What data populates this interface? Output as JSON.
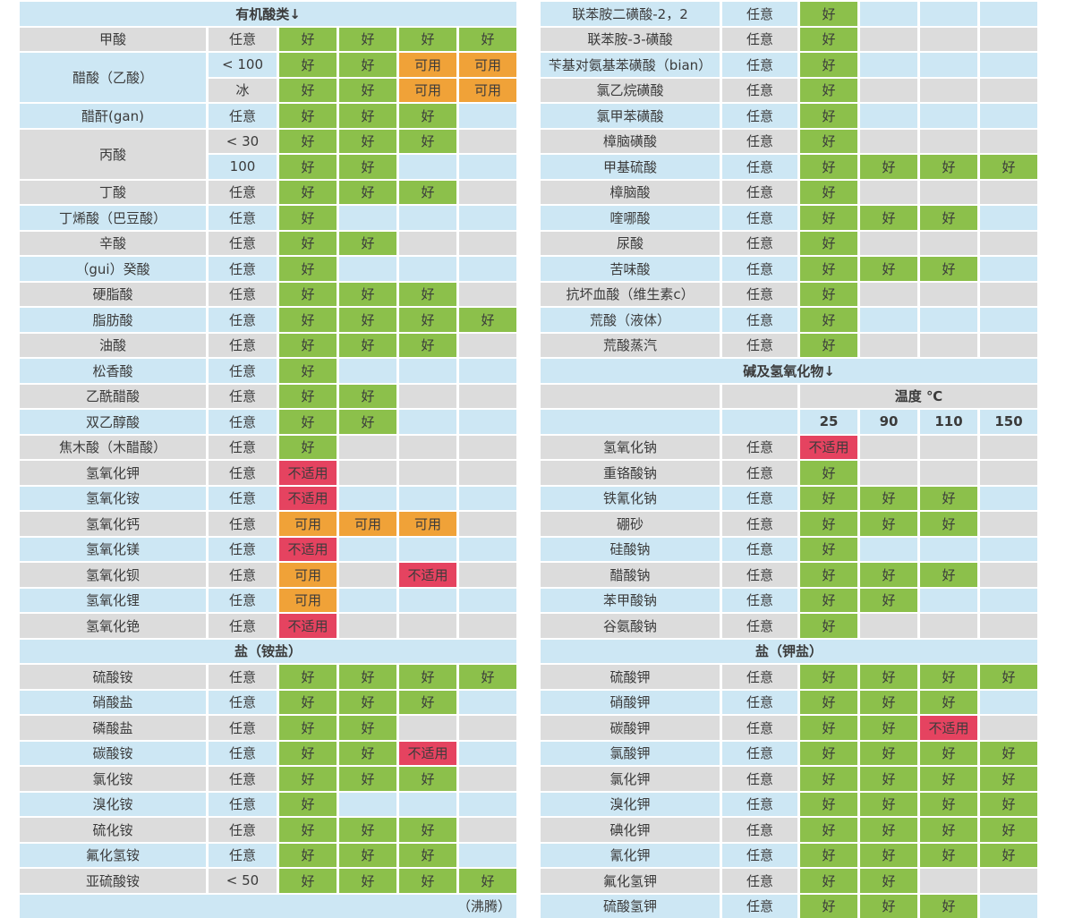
{
  "labels": {
    "good": "好",
    "ok": "可用",
    "bad": "不适用"
  },
  "colors": {
    "stripe": {
      "gray": "#dcdcdc",
      "blue": "#cde7f4"
    },
    "rating": {
      "good": "#8cc04b",
      "ok": "#f0a238",
      "bad": "#e54360"
    },
    "text": "#3b3b3b"
  },
  "temperature_header": {
    "title": "温度 ℃",
    "values": [
      "25",
      "90",
      "110",
      "150"
    ]
  },
  "tables": [
    {
      "id": "left",
      "rows": [
        {
          "kind": "section",
          "label": "有机酸类↓"
        },
        {
          "kind": "data",
          "shade": "gray",
          "name": "甲酸",
          "conc": "任意",
          "ratings": [
            "good",
            "good",
            "good",
            "good"
          ]
        },
        {
          "kind": "data",
          "shade": "blue",
          "name": "醋酸（乙酸）",
          "name_span": 2,
          "conc": "< 100",
          "ratings": [
            "good",
            "good",
            "ok",
            "ok"
          ]
        },
        {
          "kind": "data",
          "shade": "gray",
          "name": null,
          "conc": "冰",
          "ratings": [
            "good",
            "good",
            "ok",
            "ok"
          ]
        },
        {
          "kind": "data",
          "shade": "blue",
          "name": "醋酐(gan)",
          "conc": "任意",
          "ratings": [
            "good",
            "good",
            "good",
            ""
          ]
        },
        {
          "kind": "data",
          "shade": "gray",
          "name": "丙酸",
          "name_span": 2,
          "conc": "< 30",
          "ratings": [
            "good",
            "good",
            "good",
            ""
          ]
        },
        {
          "kind": "data",
          "shade": "blue",
          "name": null,
          "conc": "100",
          "ratings": [
            "good",
            "good",
            "",
            ""
          ]
        },
        {
          "kind": "data",
          "shade": "gray",
          "name": "丁酸",
          "conc": "任意",
          "ratings": [
            "good",
            "good",
            "good",
            ""
          ]
        },
        {
          "kind": "data",
          "shade": "blue",
          "name": "丁烯酸（巴豆酸）",
          "conc": "任意",
          "ratings": [
            "good",
            "",
            "",
            ""
          ]
        },
        {
          "kind": "data",
          "shade": "gray",
          "name": "辛酸",
          "conc": "任意",
          "ratings": [
            "good",
            "good",
            "",
            ""
          ]
        },
        {
          "kind": "data",
          "shade": "blue",
          "name": "（gui）癸酸",
          "conc": "任意",
          "ratings": [
            "good",
            "",
            "",
            ""
          ]
        },
        {
          "kind": "data",
          "shade": "gray",
          "name": "硬脂酸",
          "conc": "任意",
          "ratings": [
            "good",
            "good",
            "good",
            ""
          ]
        },
        {
          "kind": "data",
          "shade": "blue",
          "name": "脂肪酸",
          "conc": "任意",
          "ratings": [
            "good",
            "good",
            "good",
            "good"
          ]
        },
        {
          "kind": "data",
          "shade": "gray",
          "name": "油酸",
          "conc": "任意",
          "ratings": [
            "good",
            "good",
            "good",
            ""
          ]
        },
        {
          "kind": "data",
          "shade": "blue",
          "name": "松香酸",
          "conc": "任意",
          "ratings": [
            "good",
            "",
            "",
            ""
          ]
        },
        {
          "kind": "data",
          "shade": "gray",
          "name": "乙酰醋酸",
          "conc": "任意",
          "ratings": [
            "good",
            "good",
            "",
            ""
          ]
        },
        {
          "kind": "data",
          "shade": "blue",
          "name": "双乙醇酸",
          "conc": "任意",
          "ratings": [
            "good",
            "good",
            "",
            ""
          ]
        },
        {
          "kind": "data",
          "shade": "gray",
          "name": "焦木酸（木醋酸）",
          "conc": "任意",
          "ratings": [
            "good",
            "",
            "",
            ""
          ]
        },
        {
          "kind": "data",
          "shade": "gray",
          "name": "氢氧化钾",
          "conc": "任意",
          "ratings": [
            "bad",
            "",
            "",
            ""
          ]
        },
        {
          "kind": "data",
          "shade": "blue",
          "name": "氢氧化铵",
          "conc": "任意",
          "ratings": [
            "bad",
            "",
            "",
            ""
          ]
        },
        {
          "kind": "data",
          "shade": "gray",
          "name": "氢氧化钙",
          "conc": "任意",
          "ratings": [
            "ok",
            "ok",
            "ok",
            ""
          ]
        },
        {
          "kind": "data",
          "shade": "blue",
          "name": "氢氧化镁",
          "conc": "任意",
          "ratings": [
            "bad",
            "",
            "",
            ""
          ]
        },
        {
          "kind": "data",
          "shade": "gray",
          "name": "氢氧化钡",
          "conc": "任意",
          "ratings": [
            "ok",
            "",
            "bad",
            ""
          ]
        },
        {
          "kind": "data",
          "shade": "blue",
          "name": "氢氧化锂",
          "conc": "任意",
          "ratings": [
            "ok",
            "",
            "",
            ""
          ]
        },
        {
          "kind": "data",
          "shade": "gray",
          "name": "氢氧化铯",
          "conc": "任意",
          "ratings": [
            "bad",
            "",
            "",
            ""
          ]
        },
        {
          "kind": "section",
          "label": "盐（铵盐）"
        },
        {
          "kind": "data",
          "shade": "gray",
          "name": "硫酸铵",
          "conc": "任意",
          "ratings": [
            "good",
            "good",
            "good",
            "good"
          ]
        },
        {
          "kind": "data",
          "shade": "blue",
          "name": "硝酸盐",
          "conc": "任意",
          "ratings": [
            "good",
            "good",
            "good",
            ""
          ]
        },
        {
          "kind": "data",
          "shade": "gray",
          "name": "磷酸盐",
          "conc": "任意",
          "ratings": [
            "good",
            "good",
            "",
            ""
          ]
        },
        {
          "kind": "data",
          "shade": "blue",
          "name": "碳酸铵",
          "conc": "任意",
          "ratings": [
            "good",
            "good",
            "bad",
            ""
          ]
        },
        {
          "kind": "data",
          "shade": "gray",
          "name": "氯化铵",
          "conc": "任意",
          "ratings": [
            "good",
            "good",
            "good",
            ""
          ]
        },
        {
          "kind": "data",
          "shade": "blue",
          "name": "溴化铵",
          "conc": "任意",
          "ratings": [
            "good",
            "",
            "",
            ""
          ]
        },
        {
          "kind": "data",
          "shade": "gray",
          "name": "硫化铵",
          "conc": "任意",
          "ratings": [
            "good",
            "good",
            "good",
            ""
          ]
        },
        {
          "kind": "data",
          "shade": "blue",
          "name": "氟化氢铵",
          "conc": "任意",
          "ratings": [
            "good",
            "good",
            "good",
            ""
          ]
        },
        {
          "kind": "data",
          "shade": "gray",
          "name": "亚硫酸铵",
          "conc": "< 50",
          "ratings": [
            "good",
            "good",
            "good",
            "good"
          ]
        },
        {
          "kind": "note",
          "shade": "blue",
          "label": "（沸腾）"
        }
      ]
    },
    {
      "id": "right",
      "rows": [
        {
          "kind": "data",
          "shade": "blue",
          "name": "联苯胺二磺酸-2，2",
          "conc": "任意",
          "ratings": [
            "good",
            "",
            "",
            ""
          ]
        },
        {
          "kind": "data",
          "shade": "gray",
          "name": "联苯胺-3-磺酸",
          "conc": "任意",
          "ratings": [
            "good",
            "",
            "",
            ""
          ]
        },
        {
          "kind": "data",
          "shade": "blue",
          "name": "苄基对氨基苯磺酸（bian）",
          "conc": "任意",
          "ratings": [
            "good",
            "",
            "",
            ""
          ]
        },
        {
          "kind": "data",
          "shade": "gray",
          "name": "氯乙烷磺酸",
          "conc": "任意",
          "ratings": [
            "good",
            "",
            "",
            ""
          ]
        },
        {
          "kind": "data",
          "shade": "blue",
          "name": "氯甲苯磺酸",
          "conc": "任意",
          "ratings": [
            "good",
            "",
            "",
            ""
          ]
        },
        {
          "kind": "data",
          "shade": "gray",
          "name": "樟脑磺酸",
          "conc": "任意",
          "ratings": [
            "good",
            "",
            "",
            ""
          ]
        },
        {
          "kind": "data",
          "shade": "blue",
          "name": "甲基硫酸",
          "conc": "任意",
          "ratings": [
            "good",
            "good",
            "good",
            "good"
          ]
        },
        {
          "kind": "data",
          "shade": "gray",
          "name": "樟脑酸",
          "conc": "任意",
          "ratings": [
            "good",
            "",
            "",
            ""
          ]
        },
        {
          "kind": "data",
          "shade": "blue",
          "name": "喹哪酸",
          "conc": "任意",
          "ratings": [
            "good",
            "good",
            "good",
            ""
          ]
        },
        {
          "kind": "data",
          "shade": "gray",
          "name": "尿酸",
          "conc": "任意",
          "ratings": [
            "good",
            "",
            "",
            ""
          ]
        },
        {
          "kind": "data",
          "shade": "blue",
          "name": "苦味酸",
          "conc": "任意",
          "ratings": [
            "good",
            "good",
            "good",
            ""
          ]
        },
        {
          "kind": "data",
          "shade": "gray",
          "name": "抗坏血酸（维生素c）",
          "conc": "任意",
          "ratings": [
            "good",
            "",
            "",
            ""
          ]
        },
        {
          "kind": "data",
          "shade": "blue",
          "name": "荒酸（液体）",
          "conc": "任意",
          "ratings": [
            "good",
            "",
            "",
            ""
          ]
        },
        {
          "kind": "data",
          "shade": "gray",
          "name": "荒酸蒸汽",
          "conc": "任意",
          "ratings": [
            "good",
            "",
            "",
            ""
          ]
        },
        {
          "kind": "section",
          "label": "碱及氢氧化物↓"
        },
        {
          "kind": "temp-title",
          "shade": "gray",
          "label": "温度 ℃"
        },
        {
          "kind": "temps",
          "shade": "blue",
          "values": [
            "25",
            "90",
            "110",
            "150"
          ]
        },
        {
          "kind": "data",
          "shade": "gray",
          "name": "氢氧化钠",
          "conc": "任意",
          "ratings": [
            "bad",
            "",
            "",
            ""
          ]
        },
        {
          "kind": "data",
          "shade": "gray",
          "name": "重铬酸钠",
          "conc": "任意",
          "ratings": [
            "good",
            "",
            "",
            ""
          ]
        },
        {
          "kind": "data",
          "shade": "blue",
          "name": "铁氰化钠",
          "conc": "任意",
          "ratings": [
            "good",
            "good",
            "good",
            ""
          ]
        },
        {
          "kind": "data",
          "shade": "gray",
          "name": "硼砂",
          "conc": "任意",
          "ratings": [
            "good",
            "good",
            "good",
            ""
          ]
        },
        {
          "kind": "data",
          "shade": "blue",
          "name": "硅酸钠",
          "conc": "任意",
          "ratings": [
            "good",
            "",
            "",
            ""
          ]
        },
        {
          "kind": "data",
          "shade": "gray",
          "name": "醋酸钠",
          "conc": "任意",
          "ratings": [
            "good",
            "good",
            "good",
            ""
          ]
        },
        {
          "kind": "data",
          "shade": "blue",
          "name": "苯甲酸钠",
          "conc": "任意",
          "ratings": [
            "good",
            "good",
            "",
            ""
          ]
        },
        {
          "kind": "data",
          "shade": "gray",
          "name": "谷氨酸钠",
          "conc": "任意",
          "ratings": [
            "good",
            "",
            "",
            ""
          ]
        },
        {
          "kind": "section",
          "label": "盐（钾盐）"
        },
        {
          "kind": "data",
          "shade": "gray",
          "name": "硫酸钾",
          "conc": "任意",
          "ratings": [
            "good",
            "good",
            "good",
            "good"
          ]
        },
        {
          "kind": "data",
          "shade": "blue",
          "name": "硝酸钾",
          "conc": "任意",
          "ratings": [
            "good",
            "good",
            "good",
            ""
          ]
        },
        {
          "kind": "data",
          "shade": "gray",
          "name": "碳酸钾",
          "conc": "任意",
          "ratings": [
            "good",
            "good",
            "bad",
            ""
          ]
        },
        {
          "kind": "data",
          "shade": "blue",
          "name": "氯酸钾",
          "conc": "任意",
          "ratings": [
            "good",
            "good",
            "good",
            "good"
          ]
        },
        {
          "kind": "data",
          "shade": "gray",
          "name": "氯化钾",
          "conc": "任意",
          "ratings": [
            "good",
            "good",
            "good",
            "good"
          ]
        },
        {
          "kind": "data",
          "shade": "blue",
          "name": "溴化钾",
          "conc": "任意",
          "ratings": [
            "good",
            "good",
            "good",
            "good"
          ]
        },
        {
          "kind": "data",
          "shade": "gray",
          "name": "碘化钾",
          "conc": "任意",
          "ratings": [
            "good",
            "good",
            "good",
            "good"
          ]
        },
        {
          "kind": "data",
          "shade": "blue",
          "name": "氰化钾",
          "conc": "任意",
          "ratings": [
            "good",
            "good",
            "good",
            "good"
          ]
        },
        {
          "kind": "data",
          "shade": "gray",
          "name": "氟化氢钾",
          "conc": "任意",
          "ratings": [
            "good",
            "good",
            "",
            ""
          ]
        },
        {
          "kind": "data",
          "shade": "blue",
          "name": "硫酸氢钾",
          "conc": "任意",
          "ratings": [
            "good",
            "good",
            "good",
            ""
          ]
        }
      ]
    }
  ]
}
